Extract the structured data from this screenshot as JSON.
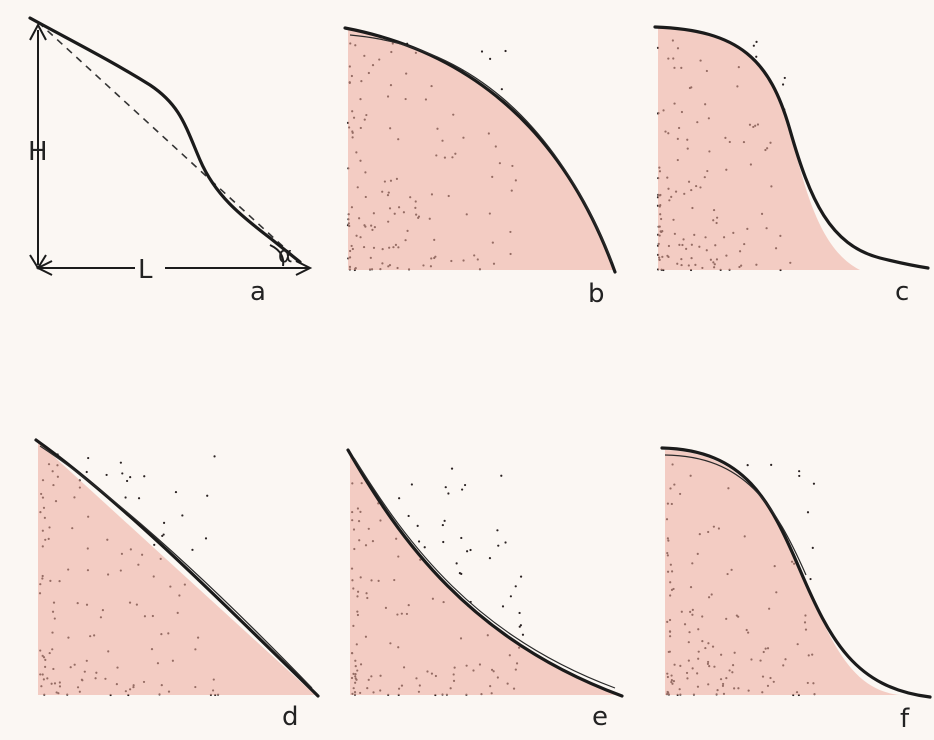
{
  "annotations": {
    "height": "H",
    "length": "L",
    "angle": "α"
  },
  "panels": [
    {
      "label": "a"
    },
    {
      "label": "b"
    },
    {
      "label": "c"
    },
    {
      "label": "d"
    },
    {
      "label": "e"
    },
    {
      "label": "f"
    }
  ]
}
